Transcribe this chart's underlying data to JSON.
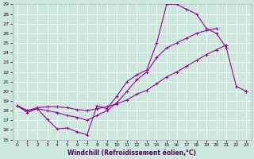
{
  "xlabel": "Windchill (Refroidissement éolien,°C)",
  "background_color": "#cce8dd",
  "grid_color": "#ffffff",
  "line_color": "#990099",
  "xlim": [
    -0.5,
    23.5
  ],
  "ylim": [
    15,
    29
  ],
  "xticks": [
    0,
    1,
    2,
    3,
    4,
    5,
    6,
    7,
    8,
    9,
    10,
    11,
    12,
    13,
    14,
    15,
    16,
    17,
    18,
    19,
    20,
    21,
    22,
    23
  ],
  "yticks": [
    15,
    16,
    17,
    18,
    19,
    20,
    21,
    22,
    23,
    24,
    25,
    26,
    27,
    28,
    29
  ],
  "lineA_x": [
    0,
    1,
    2,
    3,
    4,
    5,
    6,
    7,
    8,
    9,
    10,
    11,
    12,
    13,
    14,
    15,
    16,
    17,
    18,
    19,
    20,
    21,
    22,
    23
  ],
  "lineA_y": [
    18.5,
    17.8,
    18.2,
    17.1,
    16.1,
    16.2,
    15.8,
    15.5,
    18.5,
    18.2,
    19.5,
    21.0,
    21.7,
    22.2,
    25.0,
    29.0,
    29.0,
    28.5,
    28.0,
    26.5,
    26.0,
    24.5,
    20.5,
    20.0
  ],
  "lineB_x": [
    0,
    1,
    2,
    3,
    4,
    5,
    6,
    7,
    8,
    9,
    10,
    11,
    12,
    13,
    14,
    15,
    16,
    17,
    18,
    19,
    20,
    21,
    22,
    23
  ],
  "lineB_y": [
    18.5,
    18.0,
    18.3,
    18.4,
    18.4,
    18.3,
    18.1,
    18.0,
    18.2,
    18.4,
    18.7,
    19.1,
    19.7,
    20.1,
    20.8,
    21.5,
    22.0,
    22.6,
    23.2,
    23.8,
    24.3,
    24.8,
    null,
    20.0
  ],
  "lineC_x": [
    0,
    1,
    2,
    3,
    4,
    5,
    6,
    7,
    8,
    9,
    10,
    11,
    12,
    13,
    14,
    15,
    16,
    17,
    18,
    19,
    20,
    21,
    22,
    23
  ],
  "lineC_y": [
    18.5,
    18.0,
    18.2,
    18.0,
    17.8,
    17.5,
    17.3,
    17.0,
    17.5,
    18.0,
    18.8,
    20.0,
    21.2,
    22.0,
    23.5,
    24.5,
    25.0,
    25.5,
    26.0,
    26.3,
    26.5,
    null,
    null,
    20.0
  ]
}
